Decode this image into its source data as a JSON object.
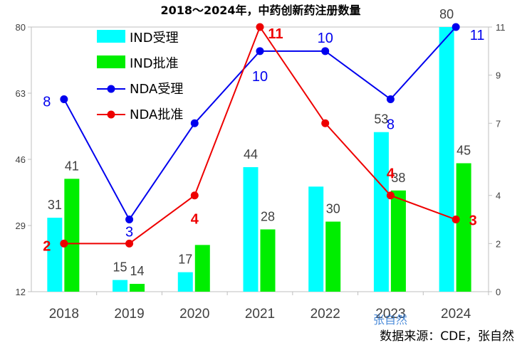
{
  "chart_data": {
    "type": "bar",
    "title": "2018～2024年，中药创新药注册数量",
    "categories": [
      "2018",
      "2019",
      "2020",
      "2021",
      "2022",
      "2023",
      "2024"
    ],
    "series": [
      {
        "name": "IND受理",
        "kind": "bar",
        "axis": "left",
        "color": "#00ffff",
        "values": [
          31,
          15,
          17,
          44,
          39,
          53,
          80
        ],
        "labels": [
          "31",
          "15",
          "17",
          "44",
          "",
          "53",
          "80"
        ]
      },
      {
        "name": "IND批准",
        "kind": "bar",
        "axis": "left",
        "color": "#00ee00",
        "values": [
          41,
          14,
          24,
          28,
          30,
          38,
          45
        ],
        "labels": [
          "41",
          "14",
          "",
          "28",
          "30",
          "38",
          "45"
        ]
      },
      {
        "name": "NDA受理",
        "kind": "line",
        "axis": "right",
        "color": "#0000ee",
        "values": [
          8,
          3,
          7,
          10,
          10,
          8,
          11
        ],
        "labels": [
          "8",
          "3",
          "",
          "10",
          "10",
          "8",
          "11"
        ]
      },
      {
        "name": "NDA批准",
        "kind": "line",
        "axis": "right",
        "color": "#ee0000",
        "values": [
          2,
          2,
          4,
          11,
          7,
          4,
          3
        ],
        "labels": [
          "2",
          "",
          "4",
          "11",
          "",
          "4",
          "3"
        ]
      }
    ],
    "y_left": {
      "range": [
        12,
        80
      ],
      "ticks": [
        "12",
        "29",
        "46",
        "63",
        "80"
      ]
    },
    "y_right": {
      "range": [
        0,
        11
      ],
      "ticks": [
        "0",
        "2",
        "4",
        "7",
        "9",
        "11"
      ]
    },
    "legend": "top-left",
    "grid": false,
    "source_note": "数据来源：CDE，张自然",
    "watermark": "张自然"
  }
}
